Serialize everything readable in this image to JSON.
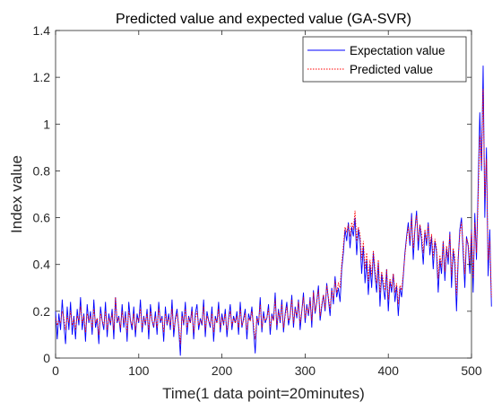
{
  "chart_data": {
    "type": "line",
    "title": "Predicted value and expected value (GA-SVR)",
    "xlabel": "Time(1 data point=20minutes)",
    "ylabel": "Index value",
    "xlim": [
      0,
      500
    ],
    "ylim": [
      0,
      1.4
    ],
    "x_ticks": [
      0,
      100,
      200,
      300,
      400,
      500
    ],
    "y_ticks": [
      0,
      0.2,
      0.4,
      0.6,
      0.8,
      1,
      1.2,
      1.4
    ],
    "grid": false,
    "legend_position": "top-right",
    "x_step": 2,
    "series": [
      {
        "name": "Expectation value",
        "color": "#0000ff",
        "line_style": "solid",
        "values": [
          0.2,
          0.08,
          0.19,
          0.12,
          0.25,
          0.14,
          0.06,
          0.22,
          0.12,
          0.24,
          0.1,
          0.18,
          0.08,
          0.21,
          0.14,
          0.26,
          0.12,
          0.19,
          0.07,
          0.23,
          0.15,
          0.2,
          0.1,
          0.25,
          0.13,
          0.17,
          0.06,
          0.22,
          0.16,
          0.12,
          0.24,
          0.09,
          0.19,
          0.14,
          0.21,
          0.08,
          0.26,
          0.15,
          0.18,
          0.11,
          0.23,
          0.13,
          0.2,
          0.07,
          0.24,
          0.16,
          0.12,
          0.22,
          0.09,
          0.19,
          0.15,
          0.25,
          0.11,
          0.18,
          0.14,
          0.21,
          0.08,
          0.23,
          0.16,
          0.13,
          0.2,
          0.1,
          0.24,
          0.15,
          0.18,
          0.07,
          0.22,
          0.14,
          0.19,
          0.12,
          0.25,
          0.09,
          0.17,
          0.21,
          0.13,
          0.01,
          0.2,
          0.14,
          0.24,
          0.1,
          0.18,
          0.15,
          0.22,
          0.08,
          0.19,
          0.23,
          0.12,
          0.17,
          0.14,
          0.25,
          0.09,
          0.2,
          0.16,
          0.13,
          0.22,
          0.07,
          0.18,
          0.15,
          0.24,
          0.11,
          0.19,
          0.14,
          0.21,
          0.09,
          0.17,
          0.23,
          0.12,
          0.18,
          0.15,
          0.2,
          0.1,
          0.24,
          0.13,
          0.17,
          0.21,
          0.08,
          0.19,
          0.16,
          0.22,
          0.12,
          0.02,
          0.18,
          0.14,
          0.26,
          0.11,
          0.2,
          0.15,
          0.17,
          0.23,
          0.1,
          0.19,
          0.16,
          0.28,
          0.12,
          0.21,
          0.15,
          0.25,
          0.11,
          0.19,
          0.24,
          0.14,
          0.18,
          0.27,
          0.13,
          0.22,
          0.17,
          0.25,
          0.12,
          0.2,
          0.28,
          0.15,
          0.23,
          0.18,
          0.26,
          0.13,
          0.29,
          0.19,
          0.24,
          0.31,
          0.16,
          0.22,
          0.27,
          0.2,
          0.32,
          0.25,
          0.18,
          0.3,
          0.23,
          0.35,
          0.26,
          0.3,
          0.24,
          0.38,
          0.45,
          0.55,
          0.5,
          0.58,
          0.47,
          0.56,
          0.52,
          0.6,
          0.44,
          0.55,
          0.5,
          0.36,
          0.48,
          0.32,
          0.42,
          0.27,
          0.4,
          0.3,
          0.45,
          0.35,
          0.28,
          0.41,
          0.22,
          0.36,
          0.3,
          0.25,
          0.38,
          0.2,
          0.33,
          0.28,
          0.36,
          0.24,
          0.31,
          0.18,
          0.3,
          0.26,
          0.35,
          0.45,
          0.52,
          0.58,
          0.48,
          0.62,
          0.42,
          0.55,
          0.63,
          0.46,
          0.57,
          0.5,
          0.4,
          0.54,
          0.48,
          0.58,
          0.44,
          0.52,
          0.38,
          0.5,
          0.45,
          0.28,
          0.42,
          0.36,
          0.5,
          0.33,
          0.47,
          0.4,
          0.54,
          0.3,
          0.46,
          0.4,
          0.2,
          0.42,
          0.55,
          0.6,
          0.45,
          0.3,
          0.52,
          0.48,
          0.36,
          0.55,
          0.28,
          0.62,
          0.42,
          0.73,
          1.05,
          0.8,
          1.25,
          0.6,
          0.9,
          0.35,
          0.55,
          0.22
        ]
      },
      {
        "name": "Predicted value",
        "color": "#ff0000",
        "line_style": "dotted",
        "values": [
          0.17,
          0.14,
          0.16,
          0.15,
          0.2,
          0.17,
          0.12,
          0.18,
          0.15,
          0.2,
          0.14,
          0.17,
          0.12,
          0.18,
          0.16,
          0.22,
          0.15,
          0.18,
          0.11,
          0.19,
          0.16,
          0.18,
          0.13,
          0.21,
          0.15,
          0.17,
          0.1,
          0.19,
          0.16,
          0.14,
          0.2,
          0.12,
          0.17,
          0.15,
          0.19,
          0.12,
          0.26,
          0.16,
          0.17,
          0.13,
          0.2,
          0.15,
          0.18,
          0.11,
          0.2,
          0.16,
          0.14,
          0.19,
          0.12,
          0.17,
          0.16,
          0.21,
          0.13,
          0.17,
          0.15,
          0.19,
          0.12,
          0.2,
          0.16,
          0.14,
          0.18,
          0.13,
          0.21,
          0.16,
          0.17,
          0.11,
          0.19,
          0.15,
          0.17,
          0.14,
          0.21,
          0.12,
          0.16,
          0.19,
          0.14,
          0.06,
          0.18,
          0.15,
          0.21,
          0.13,
          0.17,
          0.15,
          0.2,
          0.11,
          0.17,
          0.2,
          0.14,
          0.16,
          0.15,
          0.22,
          0.12,
          0.18,
          0.16,
          0.14,
          0.19,
          0.11,
          0.17,
          0.15,
          0.21,
          0.13,
          0.17,
          0.15,
          0.19,
          0.12,
          0.16,
          0.2,
          0.14,
          0.17,
          0.15,
          0.18,
          0.13,
          0.21,
          0.14,
          0.16,
          0.19,
          0.12,
          0.17,
          0.16,
          0.2,
          0.14,
          0.08,
          0.17,
          0.15,
          0.23,
          0.13,
          0.18,
          0.16,
          0.17,
          0.21,
          0.13,
          0.18,
          0.16,
          0.25,
          0.14,
          0.2,
          0.16,
          0.23,
          0.13,
          0.18,
          0.22,
          0.16,
          0.18,
          0.25,
          0.15,
          0.21,
          0.18,
          0.24,
          0.15,
          0.2,
          0.26,
          0.17,
          0.22,
          0.19,
          0.25,
          0.16,
          0.28,
          0.2,
          0.24,
          0.29,
          0.18,
          0.23,
          0.27,
          0.21,
          0.31,
          0.26,
          0.21,
          0.29,
          0.25,
          0.33,
          0.28,
          0.32,
          0.3,
          0.4,
          0.48,
          0.56,
          0.54,
          0.57,
          0.52,
          0.58,
          0.55,
          0.63,
          0.5,
          0.56,
          0.53,
          0.42,
          0.5,
          0.38,
          0.45,
          0.33,
          0.42,
          0.35,
          0.46,
          0.38,
          0.32,
          0.42,
          0.28,
          0.37,
          0.33,
          0.29,
          0.38,
          0.25,
          0.34,
          0.3,
          0.36,
          0.28,
          0.32,
          0.23,
          0.31,
          0.29,
          0.36,
          0.44,
          0.51,
          0.56,
          0.5,
          0.6,
          0.47,
          0.55,
          0.61,
          0.5,
          0.57,
          0.53,
          0.45,
          0.55,
          0.5,
          0.57,
          0.48,
          0.53,
          0.43,
          0.51,
          0.47,
          0.34,
          0.44,
          0.39,
          0.5,
          0.37,
          0.48,
          0.43,
          0.53,
          0.35,
          0.47,
          0.43,
          0.27,
          0.43,
          0.53,
          0.58,
          0.48,
          0.36,
          0.51,
          0.49,
          0.4,
          0.54,
          0.34,
          0.58,
          0.45,
          0.68,
          0.95,
          0.82,
          1.15,
          0.68,
          0.85,
          0.42,
          0.5,
          0.26
        ]
      }
    ]
  }
}
